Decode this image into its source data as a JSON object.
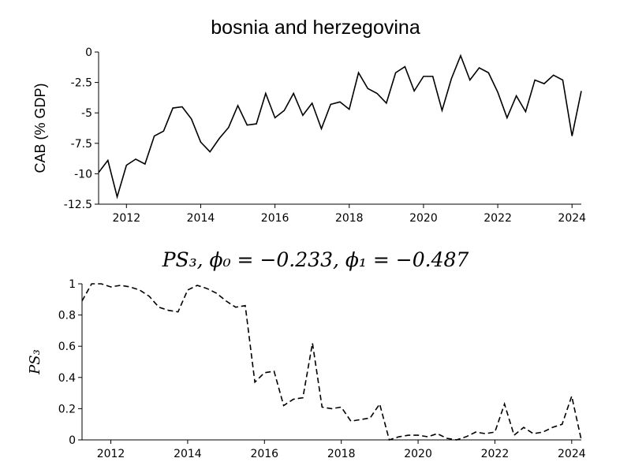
{
  "chart_data": [
    {
      "type": "line",
      "title": "bosnia and herzegovina",
      "ylabel": "CAB (% GDP)",
      "x": [
        2011.25,
        2011.5,
        2011.75,
        2012,
        2012.25,
        2012.5,
        2012.75,
        2013,
        2013.25,
        2013.5,
        2013.75,
        2014,
        2014.25,
        2014.5,
        2014.75,
        2015,
        2015.25,
        2015.5,
        2015.75,
        2016,
        2016.25,
        2016.5,
        2016.75,
        2017,
        2017.25,
        2017.5,
        2017.75,
        2018,
        2018.25,
        2018.5,
        2018.75,
        2019,
        2019.25,
        2019.5,
        2019.75,
        2020,
        2020.25,
        2020.5,
        2020.75,
        2021,
        2021.25,
        2021.5,
        2021.75,
        2022,
        2022.25,
        2022.5,
        2022.75,
        2023,
        2023.25,
        2023.5,
        2023.75,
        2024,
        2024.25
      ],
      "series": [
        {
          "color": "#000000",
          "dash": false,
          "values": [
            -9.9,
            -8.9,
            -11.9,
            -9.3,
            -8.8,
            -9.2,
            -6.9,
            -6.5,
            -4.6,
            -4.5,
            -5.5,
            -7.4,
            -8.2,
            -7.1,
            -6.2,
            -4.4,
            -6.0,
            -5.9,
            -3.4,
            -5.4,
            -4.8,
            -3.4,
            -5.2,
            -4.2,
            -6.3,
            -4.3,
            -4.1,
            -4.7,
            -1.7,
            -3.0,
            -3.4,
            -4.2,
            -1.7,
            -1.2,
            -3.2,
            -2.0,
            -2.0,
            -4.8,
            -2.2,
            -0.3,
            -2.3,
            -1.3,
            -1.7,
            -3.3,
            -5.4,
            -3.6,
            -4.9,
            -2.3,
            -2.6,
            -1.9,
            -2.3,
            -6.9,
            -3.2
          ]
        }
      ],
      "xlim": [
        2011.25,
        2024.25
      ],
      "xticks": [
        2012,
        2014,
        2016,
        2018,
        2020,
        2022,
        2024
      ],
      "ylim": [
        -12.5,
        0
      ],
      "yticks": [
        0,
        -2.5,
        -5,
        -7.5,
        -10,
        -12.5
      ]
    },
    {
      "type": "line",
      "title": "PS₃, ϕ₀ = −0.233, ϕ₁ = −0.487",
      "ylabel": "PS₃",
      "x": [
        2011.25,
        2011.5,
        2011.75,
        2012,
        2012.25,
        2012.5,
        2012.75,
        2013,
        2013.25,
        2013.5,
        2013.75,
        2014,
        2014.25,
        2014.5,
        2014.75,
        2015,
        2015.25,
        2015.5,
        2015.75,
        2016,
        2016.25,
        2016.5,
        2016.75,
        2017,
        2017.25,
        2017.5,
        2017.75,
        2018,
        2018.25,
        2018.5,
        2018.75,
        2019,
        2019.25,
        2019.5,
        2019.75,
        2020,
        2020.25,
        2020.5,
        2020.75,
        2021,
        2021.25,
        2021.5,
        2021.75,
        2022,
        2022.25,
        2022.5,
        2022.75,
        2023,
        2023.25,
        2023.5,
        2023.75,
        2024,
        2024.25
      ],
      "series": [
        {
          "color": "#000000",
          "dash": true,
          "values": [
            0.89,
            1.0,
            1.0,
            0.98,
            0.99,
            0.98,
            0.96,
            0.92,
            0.85,
            0.83,
            0.82,
            0.96,
            0.99,
            0.97,
            0.94,
            0.89,
            0.85,
            0.86,
            0.37,
            0.43,
            0.44,
            0.22,
            0.26,
            0.27,
            0.62,
            0.21,
            0.2,
            0.21,
            0.12,
            0.13,
            0.14,
            0.23,
            0.0,
            0.02,
            0.03,
            0.03,
            0.02,
            0.04,
            0.01,
            0.0,
            0.02,
            0.05,
            0.04,
            0.05,
            0.23,
            0.03,
            0.08,
            0.04,
            0.05,
            0.08,
            0.1,
            0.28,
            0.0
          ]
        }
      ],
      "xlim": [
        2011.25,
        2024.25
      ],
      "xticks": [
        2012,
        2014,
        2016,
        2018,
        2020,
        2022,
        2024
      ],
      "ylim": [
        0,
        1
      ],
      "yticks": [
        0,
        0.2,
        0.4,
        0.6,
        0.8,
        1
      ]
    }
  ]
}
